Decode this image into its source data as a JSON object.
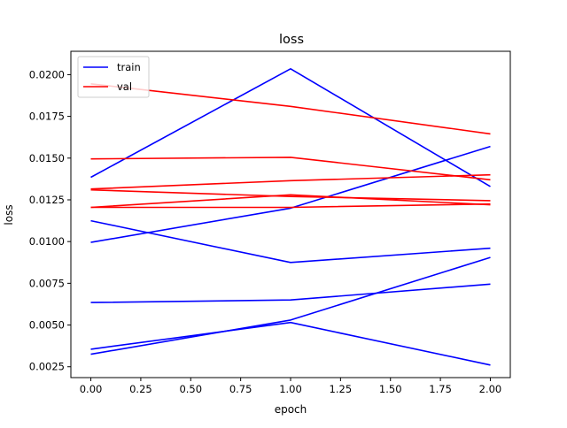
{
  "chart_data": {
    "type": "line",
    "title": "loss",
    "xlabel": "epoch",
    "ylabel": "loss",
    "xlim": [
      -0.1,
      2.1
    ],
    "ylim": [
      0.00185,
      0.0214
    ],
    "grid": false,
    "legend_position": "top-left",
    "x_ticks": [
      0.0,
      0.25,
      0.5,
      0.75,
      1.0,
      1.25,
      1.5,
      1.75,
      2.0
    ],
    "x_tick_labels": [
      "0.00",
      "0.25",
      "0.50",
      "0.75",
      "1.00",
      "1.25",
      "1.50",
      "1.75",
      "2.00"
    ],
    "y_ticks": [
      0.0025,
      0.005,
      0.0075,
      0.01,
      0.0125,
      0.015,
      0.0175,
      0.02
    ],
    "y_tick_labels": [
      "0.0025",
      "0.0050",
      "0.0075",
      "0.0100",
      "0.0125",
      "0.0150",
      "0.0175",
      "0.0200"
    ],
    "legend": [
      {
        "label": "train",
        "color": "#0000ff"
      },
      {
        "label": "val",
        "color": "#ff0000"
      }
    ],
    "x": [
      0,
      1,
      2
    ],
    "series": [
      {
        "group": "train",
        "color": "#0000ff",
        "values": [
          0.01385,
          0.02035,
          0.0133
        ]
      },
      {
        "group": "train",
        "color": "#0000ff",
        "values": [
          0.00995,
          0.012,
          0.0157
        ]
      },
      {
        "group": "train",
        "color": "#0000ff",
        "values": [
          0.01125,
          0.00875,
          0.0096
        ]
      },
      {
        "group": "train",
        "color": "#0000ff",
        "values": [
          0.00635,
          0.0065,
          0.00745
        ]
      },
      {
        "group": "train",
        "color": "#0000ff",
        "values": [
          0.00355,
          0.00515,
          0.0026
        ]
      },
      {
        "group": "train",
        "color": "#0000ff",
        "values": [
          0.00325,
          0.0053,
          0.00905
        ]
      },
      {
        "group": "val",
        "color": "#ff0000",
        "values": [
          0.01945,
          0.0181,
          0.01645
        ]
      },
      {
        "group": "val",
        "color": "#ff0000",
        "values": [
          0.01495,
          0.01505,
          0.0137
        ]
      },
      {
        "group": "val",
        "color": "#ff0000",
        "values": [
          0.01315,
          0.01365,
          0.014
        ]
      },
      {
        "group": "val",
        "color": "#ff0000",
        "values": [
          0.0131,
          0.0127,
          0.01245
        ]
      },
      {
        "group": "val",
        "color": "#ff0000",
        "values": [
          0.01205,
          0.0128,
          0.0122
        ]
      },
      {
        "group": "val",
        "color": "#ff0000",
        "values": [
          0.01205,
          0.01205,
          0.01225
        ]
      }
    ]
  }
}
